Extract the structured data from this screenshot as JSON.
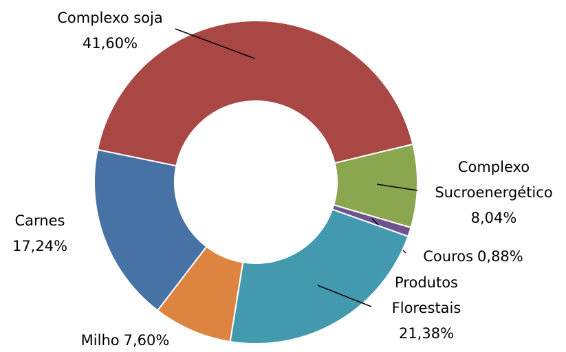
{
  "chart_data": {
    "type": "donut",
    "categories": [
      "Complexo soja",
      "Complexo Sucroenergético",
      "Couros",
      "Produtos Florestais",
      "Milho",
      "Carnes"
    ],
    "values": [
      41.6,
      8.04,
      0.88,
      21.38,
      7.6,
      17.24
    ],
    "value_labels": [
      "41,60%",
      "8,04%",
      "0,88%",
      "21,38%",
      "7,60%",
      "17,24%"
    ],
    "colors": [
      "#a94744",
      "#8aa64e",
      "#6f5391",
      "#4399ae",
      "#dd8440",
      "#4672a5"
    ]
  }
}
